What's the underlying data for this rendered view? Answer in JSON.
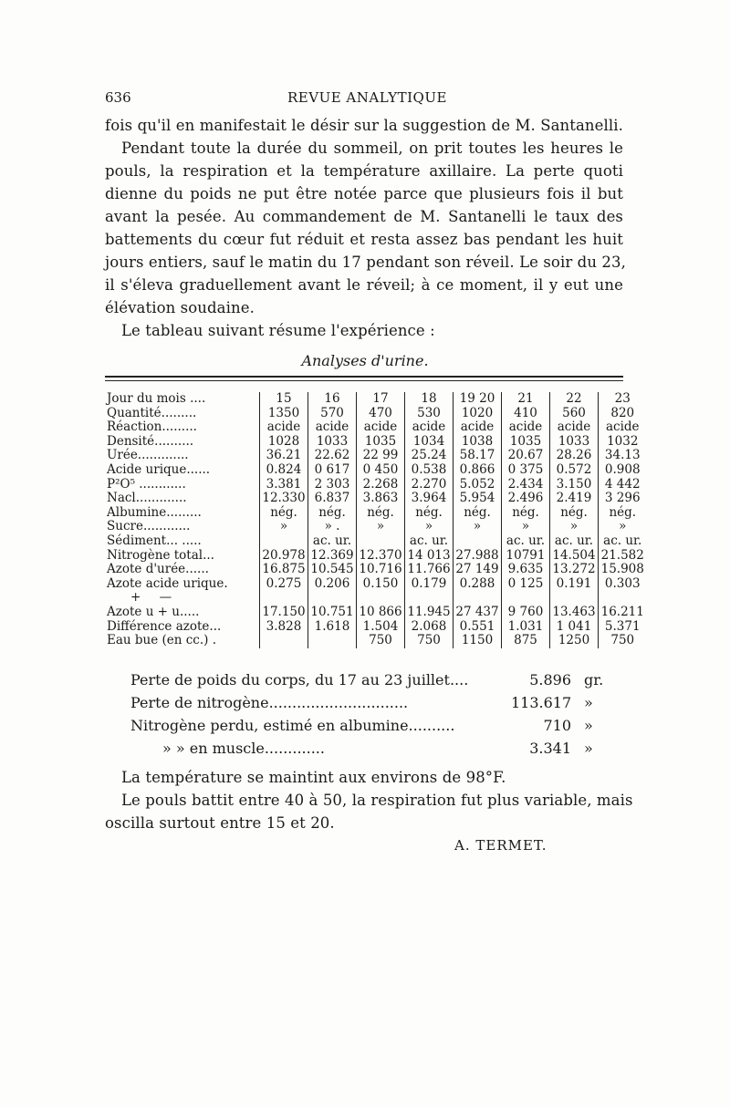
{
  "header": {
    "page_number": "636",
    "running_title": "REVUE ANALYTIQUE"
  },
  "paragraphs": [
    "fois qu'il en manifestait le désir sur la suggestion de M. Santanelli.",
    "Pendant toute la durée du sommeil, on prit toutes les heures le",
    "pouls, la respiration et la température axillaire. La perte quoti",
    "dienne du poids ne put être notée parce que plusieurs fois il but",
    "avant la pesée. Au commandement de M. Santanelli le taux des",
    "battements du cœur fut réduit et resta assez bas pendant les huit",
    "jours entiers, sauf le matin du 17 pendant son réveil. Le soir du 23,",
    "il s'éleva graduellement avant le réveil; à ce moment, il y eut une",
    "élévation soudaine.",
    "Le tableau suivant résume l'expérience :"
  ],
  "table": {
    "caption": "Analyses d'urine.",
    "rows": [
      {
        "label": "Jour du mois ....",
        "values": [
          "15",
          "16",
          "17",
          "18",
          "19 20",
          "21",
          "22",
          "23"
        ]
      },
      {
        "label": "Quantité.........",
        "values": [
          "1350",
          "570",
          "470",
          "530",
          "1020",
          "410",
          "560",
          "820"
        ]
      },
      {
        "label": "Réaction.........",
        "values": [
          "acide",
          "acide",
          "acide",
          "acide",
          "acide",
          "acide",
          "acide",
          "acide"
        ]
      },
      {
        "label": "Densité..........",
        "values": [
          "1028",
          "1033",
          "1035",
          "1034",
          "1038",
          "1035",
          "1033",
          "1032"
        ]
      },
      {
        "label": "Urée.............",
        "values": [
          "36.21",
          "22.62",
          "22 99",
          "25.24",
          "58.17",
          "20.67",
          "28.26",
          "34.13"
        ]
      },
      {
        "label": "Acide urique......",
        "values": [
          "0.824",
          "0 617",
          "0 450",
          "0.538",
          "0.866",
          "0 375",
          "0.572",
          "0.908"
        ]
      },
      {
        "label": "P²O⁵ ............",
        "values": [
          "3.381",
          "2 303",
          "2.268",
          "2.270",
          "5.052",
          "2.434",
          "3.150",
          "4 442"
        ]
      },
      {
        "label": "Nacl.............",
        "values": [
          "12.330",
          "6.837",
          "3.863",
          "3.964",
          "5.954",
          "2.496",
          "2.419",
          "3 296"
        ]
      },
      {
        "label": "Albumine.........",
        "values": [
          "nég.",
          "nég.",
          "nég.",
          "nég.",
          "nég.",
          "nég.",
          "nég.",
          "nég."
        ]
      },
      {
        "label": "Sucre............",
        "values": [
          "»",
          "» .",
          "»",
          "»",
          "»",
          "»",
          "»",
          "»"
        ]
      },
      {
        "label": "Sédiment... .....",
        "values": [
          "",
          "ac. ur.",
          "",
          "ac. ur.",
          "",
          "ac. ur.",
          "ac. ur.",
          "ac. ur."
        ]
      },
      {
        "label": "Nitrogène total...",
        "values": [
          "20.978",
          "12.369",
          "12.370",
          "14 013",
          "27.988",
          "10791",
          "14.504",
          "21.582"
        ]
      },
      {
        "label": "Azote d'urée......",
        "values": [
          "16.875",
          "10.545",
          "10.716",
          "11.766",
          "27 149",
          "9.635",
          "13.272",
          "15.908"
        ]
      },
      {
        "label": "Azote acide urique.",
        "values": [
          "0.275",
          "0.206",
          "0.150",
          "0.179",
          "0.288",
          "0 125",
          "0.191",
          "0.303"
        ]
      },
      {
        "label": "+ —",
        "values": [
          "",
          "",
          "",
          "",
          "",
          "",
          "",
          ""
        ]
      },
      {
        "label": "Azote u + u.....",
        "values": [
          "17.150",
          "10.751",
          "10 866",
          "11.945",
          "27 437",
          "9 760",
          "13.463",
          "16.211"
        ]
      },
      {
        "label": "Différence azote...",
        "values": [
          "3.828",
          "1.618",
          "1.504",
          "2.068",
          "0.551",
          "1.031",
          "1 041",
          "5.371"
        ]
      },
      {
        "label": "Eau bue (en cc.) .",
        "values": [
          "",
          "",
          "750",
          "750",
          "1150",
          "875",
          "1250",
          "750"
        ]
      }
    ]
  },
  "summary": [
    {
      "label": "Perte de poids du corps, du 17 au 23 juillet....",
      "value": "5.896",
      "unit": "gr."
    },
    {
      "label": "Perte de nitrogène..............................",
      "value": "113.617",
      "unit": "»"
    },
    {
      "label": "Nitrogène perdu, estimé en albumine..........",
      "value": "710",
      "unit": "»"
    },
    {
      "label": "»          »     en muscle.............",
      "value": "3.341",
      "unit": "»"
    }
  ],
  "closing": [
    "La température se maintint aux environs de 98°F.",
    "Le pouls battit entre 40 à 50, la respiration fut plus variable, mais",
    "oscilla surtout entre 15 et 20."
  ],
  "signature": "A. TERMET."
}
